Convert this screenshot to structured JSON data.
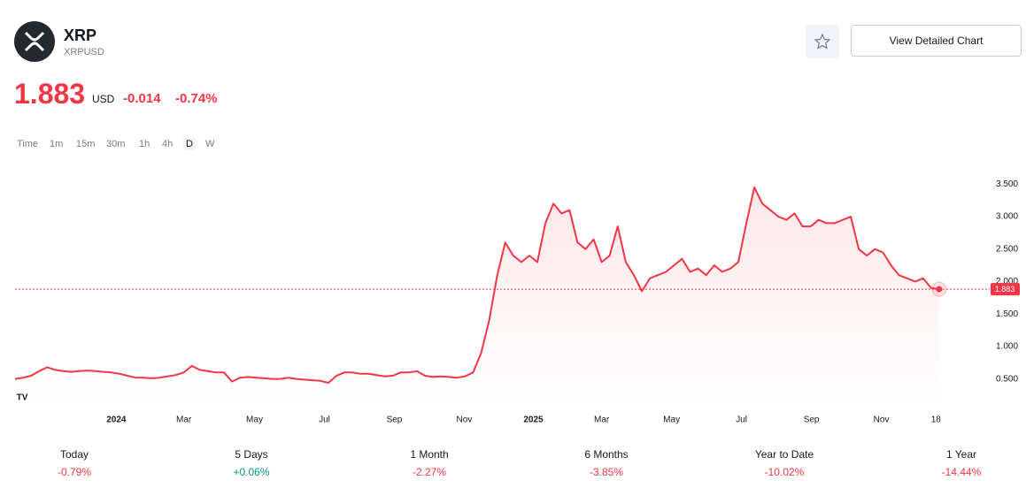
{
  "header": {
    "symbol": "XRP",
    "ticker": "XRPUSD",
    "button": "View Detailed Chart"
  },
  "price": {
    "value": "1.883",
    "currency": "USD",
    "change": "-0.014",
    "change_percent": "-0.74%"
  },
  "timeframes": [
    "Time",
    "1m",
    "15m",
    "30m",
    "1h",
    "4h",
    "D",
    "W"
  ],
  "active_timeframe": 6,
  "chart_data": {
    "type": "line",
    "color": "#f23645",
    "values": [
      0.5,
      0.52,
      0.55,
      0.62,
      0.68,
      0.64,
      0.62,
      0.61,
      0.62,
      0.63,
      0.62,
      0.61,
      0.6,
      0.58,
      0.55,
      0.52,
      0.52,
      0.51,
      0.52,
      0.54,
      0.56,
      0.6,
      0.7,
      0.64,
      0.62,
      0.6,
      0.6,
      0.46,
      0.52,
      0.53,
      0.52,
      0.51,
      0.5,
      0.5,
      0.52,
      0.5,
      0.49,
      0.48,
      0.47,
      0.44,
      0.55,
      0.6,
      0.6,
      0.58,
      0.58,
      0.56,
      0.54,
      0.55,
      0.6,
      0.6,
      0.62,
      0.55,
      0.53,
      0.54,
      0.53,
      0.52,
      0.54,
      0.6,
      0.9,
      1.4,
      2.1,
      2.6,
      2.4,
      2.3,
      2.4,
      2.3,
      2.9,
      3.2,
      3.05,
      3.1,
      2.6,
      2.5,
      2.65,
      2.3,
      2.4,
      2.85,
      2.3,
      2.1,
      1.85,
      2.05,
      2.1,
      2.15,
      2.25,
      2.35,
      2.15,
      2.2,
      2.1,
      2.25,
      2.15,
      2.2,
      2.3,
      2.9,
      3.45,
      3.2,
      3.1,
      3.0,
      2.95,
      3.05,
      2.85,
      2.85,
      2.95,
      2.9,
      2.9,
      2.95,
      3.0,
      2.5,
      2.4,
      2.5,
      2.45,
      2.25,
      2.1,
      2.05,
      2.0,
      2.05,
      1.9,
      1.883
    ],
    "xlim": [
      0,
      116
    ],
    "xticks": [
      {
        "value": 12.6,
        "label": "2024"
      },
      {
        "value": 21,
        "label": "Mar"
      },
      {
        "value": 29.8,
        "label": "May"
      },
      {
        "value": 38.5,
        "label": "Jul"
      },
      {
        "value": 47.2,
        "label": "Sep"
      },
      {
        "value": 55.9,
        "label": "Nov"
      },
      {
        "value": 64.5,
        "label": "2025"
      },
      {
        "value": 73,
        "label": "Mar"
      },
      {
        "value": 81.7,
        "label": "May"
      },
      {
        "value": 90.4,
        "label": "Jul"
      },
      {
        "value": 99.1,
        "label": "Sep"
      },
      {
        "value": 107.8,
        "label": "Nov"
      },
      {
        "value": 114.6,
        "label": "18"
      }
    ],
    "ylim": [
      0.1,
      3.75
    ],
    "yticks": [
      {
        "value": 0.5,
        "label": "0.500"
      },
      {
        "value": 1,
        "label": "1.000"
      },
      {
        "value": 1.5,
        "label": "1.500"
      },
      {
        "value": 2,
        "label": "2.000"
      },
      {
        "value": 2.5,
        "label": "2.500"
      },
      {
        "value": 3,
        "label": "3.000"
      },
      {
        "value": 3.5,
        "label": "3.500"
      }
    ]
  },
  "performance": [
    {
      "label": "Today",
      "value": "-0.79%"
    },
    {
      "label": "5 Days",
      "value": "+0.06%"
    },
    {
      "label": "1 Month",
      "value": "-2.27%"
    },
    {
      "label": "6 Months",
      "value": "-3.85%"
    },
    {
      "label": "Year to Date",
      "value": "-10.02%"
    },
    {
      "label": "1 Year",
      "value": "-14.44%"
    }
  ]
}
